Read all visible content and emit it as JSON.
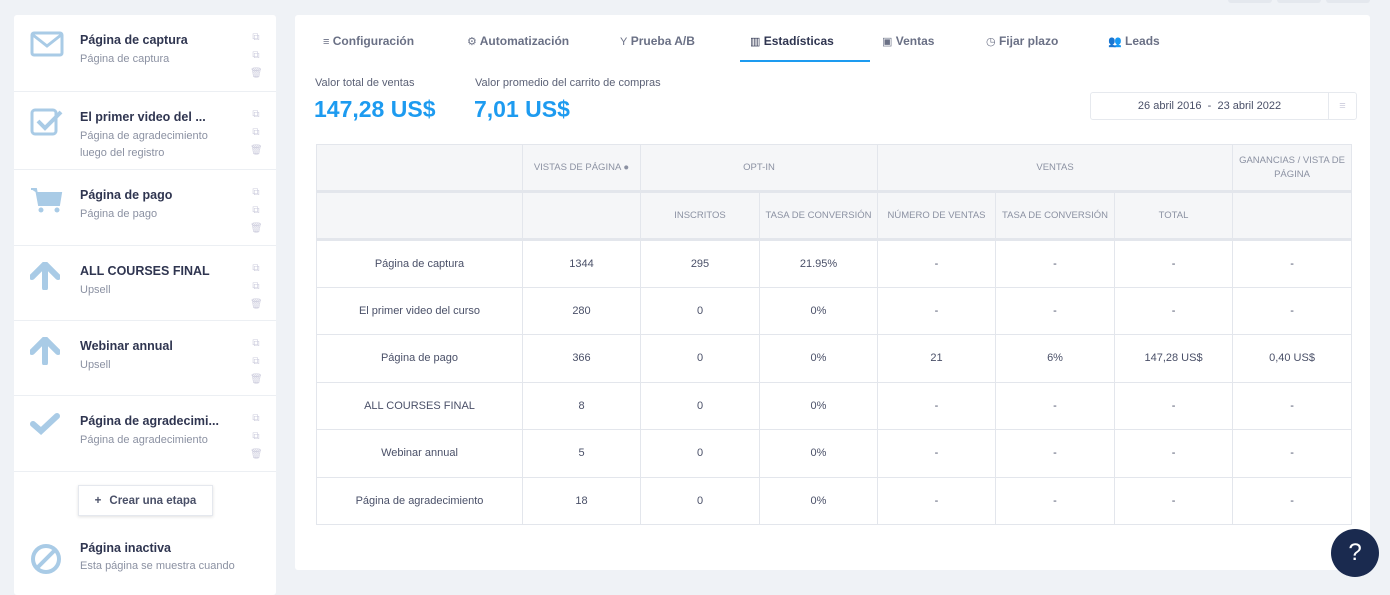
{
  "steps": [
    {
      "title": "Página de captura",
      "subtitle": "Página de captura",
      "icon": "envelope-icon"
    },
    {
      "title": "El primer video del ...",
      "subtitle": "Página de agradecimiento luego del registro",
      "icon": "checkbox-icon"
    },
    {
      "title": "Página de pago",
      "subtitle": "Página de pago",
      "icon": "cart-icon"
    },
    {
      "title": "ALL COURSES FINAL",
      "subtitle": "Upsell",
      "icon": "arrow-up-icon"
    },
    {
      "title": "Webinar annual",
      "subtitle": "Upsell",
      "icon": "arrow-up-icon"
    },
    {
      "title": "Página de agradecimi...",
      "subtitle": "Página de agradecimiento",
      "icon": "check-icon"
    }
  ],
  "add_step": "Crear una etapa",
  "inactive": {
    "title": "Página inactiva",
    "subtitle": "Esta página se muestra cuando"
  },
  "tabs": [
    {
      "label": "Configuración",
      "icon": "≡"
    },
    {
      "label": "Automatización",
      "icon": "⚙"
    },
    {
      "label": "Prueba A/B",
      "icon": "Y"
    },
    {
      "label": "Estadísticas",
      "icon": "▥"
    },
    {
      "label": "Ventas",
      "icon": "▣"
    },
    {
      "label": "Fijar plazo",
      "icon": "◷"
    },
    {
      "label": "Leads",
      "icon": "👥"
    }
  ],
  "kpis": {
    "total_label": "Valor total de ventas",
    "total_value": "147,28 US$",
    "avg_label": "Valor promedio del carrito de compras",
    "avg_value": "7,01 US$"
  },
  "date_range": {
    "from": "26 abril 2016",
    "sep": "-",
    "to": "23 abril 2022"
  },
  "table": {
    "h1": {
      "views": "Vistas de página",
      "optin": "Opt-in",
      "sales": "Ventas",
      "earnings": "Ganancias / vista de página"
    },
    "h2": {
      "subs": "Inscritos",
      "conv": "Tasa de conversión",
      "num": "Número de ventas",
      "conv2": "Tasa de conversión",
      "total": "Total"
    },
    "rows": [
      [
        "Página de captura",
        "1344",
        "295",
        "21.95%",
        "-",
        "-",
        "-",
        "-"
      ],
      [
        "El primer video del curso",
        "280",
        "0",
        "0%",
        "-",
        "-",
        "-",
        "-"
      ],
      [
        "Página de pago",
        "366",
        "0",
        "0%",
        "21",
        "6%",
        "147,28 US$",
        "0,40 US$"
      ],
      [
        "ALL COURSES FINAL",
        "8",
        "0",
        "0%",
        "-",
        "-",
        "-",
        "-"
      ],
      [
        "Webinar annual",
        "5",
        "0",
        "0%",
        "-",
        "-",
        "-",
        "-"
      ],
      [
        "Página de agradecimiento",
        "18",
        "0",
        "0%",
        "-",
        "-",
        "-",
        "-"
      ]
    ]
  },
  "help": "?",
  "colors": {
    "accent": "#1d9bf0",
    "icon": "#a9cbe6",
    "help": "#1a2a4f"
  }
}
